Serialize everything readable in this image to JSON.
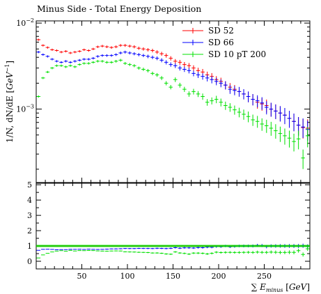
{
  "chart_data": {
    "type": "scatter",
    "title": "Minus Side - Total Energy Deposition",
    "xlabel": "∑ E_minus [GeV]",
    "ylabel": "1/N, dN/dE [GeV^-1]",
    "x_ticks": [
      "50",
      "100",
      "150",
      "200",
      "250"
    ],
    "x_tick_values": [
      50,
      100,
      150,
      200,
      250
    ],
    "xlim": [
      0,
      300
    ],
    "main": {
      "yscale": "log",
      "ylim": [
        0.00014,
        0.0106
      ],
      "y_ticks": [
        {
          "value": 0.01,
          "label": "10",
          "exp": "−2"
        },
        {
          "value": 0.001,
          "label": "10",
          "exp": "−3"
        }
      ],
      "legend_position": "top-right"
    },
    "ratio": {
      "ylim": [
        -0.5,
        5.1
      ],
      "y_ticks": [
        "0",
        "1",
        "2",
        "3",
        "4",
        "5"
      ],
      "y_tick_values": [
        0,
        1,
        2,
        3,
        4,
        5
      ],
      "reference": 1
    },
    "x": [
      2.5,
      7.5,
      12.5,
      17.5,
      22.5,
      27.5,
      32.5,
      37.5,
      42.5,
      47.5,
      52.5,
      57.5,
      62.5,
      67.5,
      72.5,
      77.5,
      82.5,
      87.5,
      92.5,
      97.5,
      102.5,
      107.5,
      112.5,
      117.5,
      122.5,
      127.5,
      132.5,
      137.5,
      142.5,
      147.5,
      152.5,
      157.5,
      162.5,
      167.5,
      172.5,
      177.5,
      182.5,
      187.5,
      192.5,
      197.5,
      202.5,
      207.5,
      212.5,
      217.5,
      222.5,
      227.5,
      232.5,
      237.5,
      242.5,
      247.5,
      252.5,
      257.5,
      262.5,
      267.5,
      272.5,
      277.5,
      282.5,
      287.5,
      292.5,
      297.5
    ],
    "series": [
      {
        "name": "SD 52",
        "color": "#ff0000",
        "values": [
          0.0064,
          0.0055,
          0.0052,
          0.0049,
          0.0048,
          0.0046,
          0.0047,
          0.0045,
          0.0046,
          0.0047,
          0.0049,
          0.0048,
          0.005,
          0.0053,
          0.0054,
          0.0053,
          0.0052,
          0.0053,
          0.0055,
          0.0055,
          0.0054,
          0.0053,
          0.0051,
          0.005,
          0.0049,
          0.0048,
          0.0046,
          0.0044,
          0.0042,
          0.0039,
          0.0036,
          0.0035,
          0.0033,
          0.0032,
          0.003,
          0.0028,
          0.0027,
          0.0025,
          0.0024,
          0.0022,
          0.0021,
          0.0019,
          0.0018,
          0.0017,
          0.0016,
          0.0015,
          0.0014,
          0.0013,
          0.0012,
          0.00115,
          0.0011,
          0.001,
          0.00095,
          0.0009,
          0.00085,
          0.00078,
          0.00072,
          0.00065,
          0.00061,
          0.0006
        ]
      },
      {
        "name": "SD 66",
        "color": "#0000ff",
        "values": [
          0.0046,
          0.0043,
          0.0041,
          0.0038,
          0.0036,
          0.0035,
          0.0036,
          0.0035,
          0.0036,
          0.0037,
          0.0038,
          0.0038,
          0.0039,
          0.0041,
          0.0042,
          0.0042,
          0.0042,
          0.0043,
          0.0045,
          0.0046,
          0.0045,
          0.0044,
          0.0043,
          0.0042,
          0.0041,
          0.004,
          0.0039,
          0.0037,
          0.0035,
          0.0033,
          0.0032,
          0.003,
          0.0029,
          0.0028,
          0.0026,
          0.0025,
          0.0024,
          0.0023,
          0.0022,
          0.0021,
          0.002,
          0.0019,
          0.0017,
          0.00165,
          0.0016,
          0.0015,
          0.0014,
          0.0013,
          0.00125,
          0.00118,
          0.00105,
          0.001,
          0.00095,
          0.0009,
          0.00085,
          0.00078,
          0.00072,
          0.00065,
          0.00062,
          0.00058
        ]
      },
      {
        "name": "SD 10 pT 200",
        "color": "#00e000",
        "values": [
          0.0014,
          0.0023,
          0.0027,
          0.003,
          0.0032,
          0.0032,
          0.0031,
          0.0032,
          0.0031,
          0.0033,
          0.0034,
          0.0034,
          0.0035,
          0.0036,
          0.0036,
          0.0035,
          0.0035,
          0.0036,
          0.0037,
          0.0034,
          0.0033,
          0.0032,
          0.003,
          0.0029,
          0.0028,
          0.0026,
          0.0025,
          0.0023,
          0.002,
          0.0018,
          0.0022,
          0.0019,
          0.0017,
          0.0015,
          0.0016,
          0.0015,
          0.0014,
          0.0012,
          0.00125,
          0.0013,
          0.0012,
          0.0011,
          0.00105,
          0.00098,
          0.00092,
          0.00087,
          0.00082,
          0.00075,
          0.00072,
          0.00067,
          0.00064,
          0.0006,
          0.00056,
          0.00052,
          0.00049,
          0.00046,
          0.00042,
          0.00045,
          0.00027,
          0.00049
        ]
      }
    ]
  }
}
